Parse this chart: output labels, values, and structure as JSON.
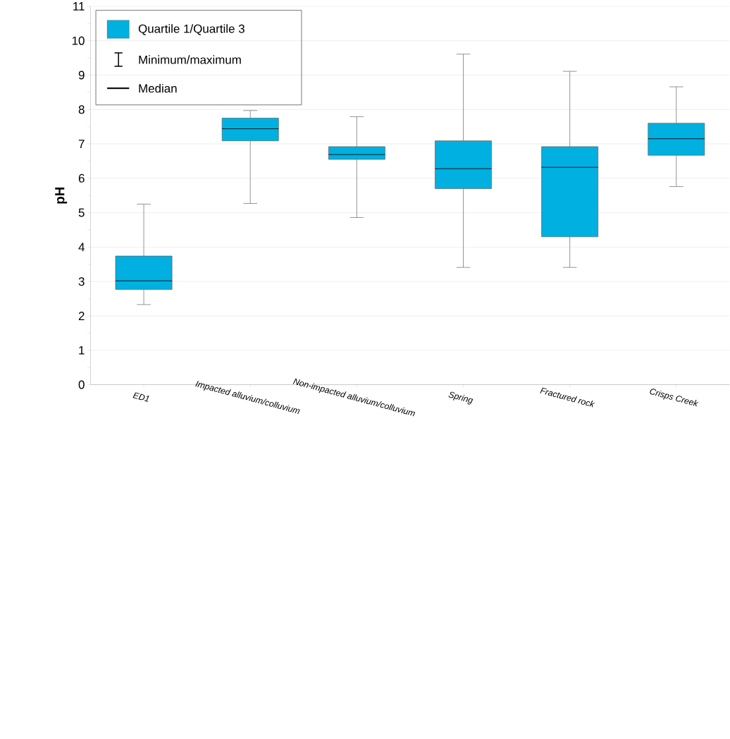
{
  "chart_data": {
    "type": "box",
    "ylabel": "pH",
    "categories": [
      "ED1",
      "Impacted alluvium/colluvium",
      "Non-impacted alluvium/colluvium",
      "Spring",
      "Fractured rock",
      "Crisps Creek"
    ],
    "series": [
      {
        "color": "#00b0e0",
        "boxes": [
          {
            "low": 2.33,
            "q1": 2.77,
            "median": 3.02,
            "q3": 3.74,
            "high": 5.25
          },
          {
            "low": 5.27,
            "q1": 7.09,
            "median": 7.44,
            "q3": 7.75,
            "high": 7.97
          },
          {
            "low": 4.86,
            "q1": 6.55,
            "median": 6.69,
            "q3": 6.92,
            "high": 7.79
          },
          {
            "low": 3.41,
            "q1": 5.7,
            "median": 6.28,
            "q3": 7.09,
            "high": 9.61
          },
          {
            "low": 3.41,
            "q1": 4.3,
            "median": 6.32,
            "q3": 6.92,
            "high": 9.11
          },
          {
            "low": 5.76,
            "q1": 6.67,
            "median": 7.15,
            "q3": 7.6,
            "high": 8.66
          }
        ]
      }
    ],
    "ylim": [
      0,
      11
    ],
    "yticks": [
      0,
      1,
      2,
      3,
      4,
      5,
      6,
      7,
      8,
      9,
      10,
      11
    ],
    "grid": "y",
    "annotations": [
      "Quartile 1/Quartile 3",
      "Minimum/maximum",
      "Median"
    ]
  }
}
